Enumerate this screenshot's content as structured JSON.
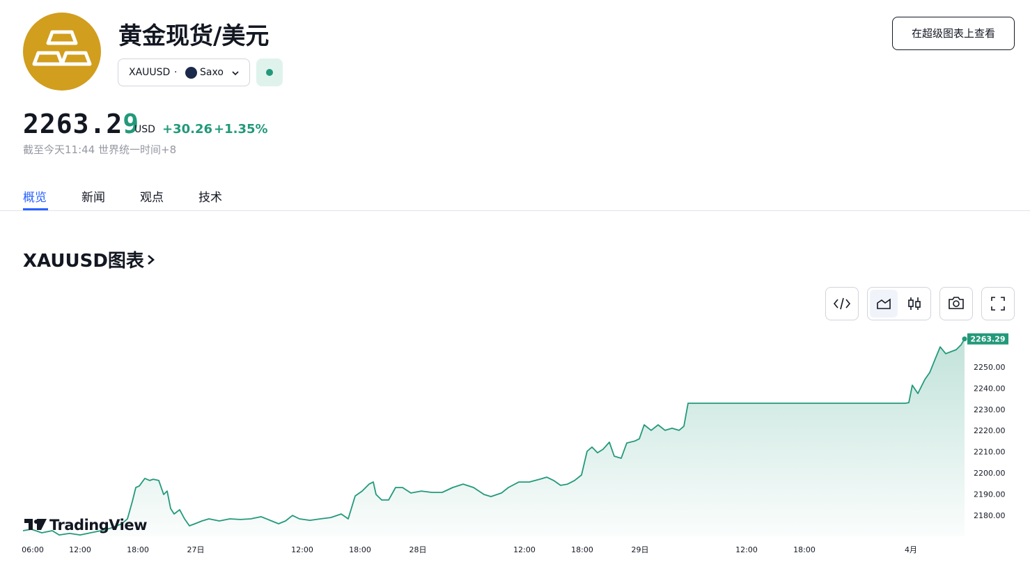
{
  "header": {
    "title": "黄金现货/美元",
    "symbol": "XAUUSD",
    "separator": "·",
    "source": "Saxo",
    "button": "在超级图表上查看"
  },
  "quote": {
    "price_main": "2263.2",
    "price_last_digit": "9",
    "currency": "USD",
    "change": "+30.26",
    "change_pct": "+1.35%",
    "timestamp": "截至今天11:44 世界统一时间+8"
  },
  "tabs": [
    "概览",
    "新闻",
    "观点",
    "技术"
  ],
  "section_title": "XAUUSD图表",
  "watermark": "TradingView",
  "chart_data": {
    "type": "area",
    "color": "#22997a",
    "grid": false,
    "x": [
      0,
      1.2,
      2.7,
      4.2,
      5.2,
      6.7,
      8.2,
      9.7,
      11.2,
      12.7,
      14.2,
      15,
      15.7,
      16.2,
      16.7,
      17.5,
      18.2,
      18.7,
      19.5,
      20.2,
      20.7,
      21.2,
      21.7,
      22.5,
      23.2,
      23.9,
      24.7,
      25.7,
      26.7,
      28.2,
      29.7,
      31.2,
      32.7,
      34.2,
      35.7,
      36.7,
      37.7,
      38.7,
      39.7,
      41.2,
      42.7,
      44.2,
      45.7,
      46.7,
      47.7,
      48.7,
      49.7,
      50.3,
      50.7,
      51.5,
      52.5,
      53.5,
      54.5,
      55.7,
      57.2,
      58.7,
      60.2,
      61.7,
      63.2,
      64.7,
      66.2,
      67.2,
      68.7,
      69.7,
      71.2,
      72.7,
      74.2,
      75.2,
      76.2,
      77.2,
      78.2,
      79.2,
      80.2,
      81,
      81.7,
      82.5,
      83.3,
      84.2,
      84.9,
      85.9,
      86.7,
      87.9,
      88.5,
      89.2,
      90.2,
      91.2,
      92.2,
      93.2,
      94.2,
      94.9,
      95.5,
      126.7,
      127.2,
      127.7,
      128.5,
      129.5,
      130.2,
      131,
      131.7,
      132.5,
      133.2,
      134,
      134.7,
      135.2
    ],
    "values": [
      2172.7,
      2173.4,
      2171.7,
      2172.7,
      2170.7,
      2171.4,
      2170.7,
      2171.7,
      2172.7,
      2174.0,
      2176.0,
      2178.3,
      2186.5,
      2193.1,
      2193.8,
      2197.4,
      2196.4,
      2197.0,
      2196.4,
      2189.8,
      2191.4,
      2183.2,
      2180.6,
      2182.6,
      2178.3,
      2175.0,
      2176.0,
      2177.3,
      2178.3,
      2177.3,
      2178.3,
      2178.0,
      2178.3,
      2179.3,
      2177.3,
      2176.0,
      2177.3,
      2179.9,
      2178.3,
      2177.6,
      2178.3,
      2178.9,
      2180.6,
      2178.3,
      2189.1,
      2191.4,
      2194.7,
      2195.7,
      2189.8,
      2187.2,
      2187.2,
      2193.1,
      2193.1,
      2190.5,
      2191.4,
      2190.8,
      2190.8,
      2193.1,
      2194.7,
      2193.1,
      2189.8,
      2188.8,
      2190.5,
      2193.1,
      2195.7,
      2195.7,
      2197.0,
      2198.0,
      2196.4,
      2194.1,
      2194.7,
      2196.4,
      2199.0,
      2210.2,
      2212.2,
      2209.5,
      2211.2,
      2214.5,
      2207.9,
      2206.9,
      2214.1,
      2215.1,
      2216.1,
      2222.7,
      2220.1,
      2222.7,
      2220.1,
      2221.1,
      2220.1,
      2222.0,
      2232.9,
      2232.9,
      2233.2,
      2241.4,
      2237.5,
      2244.1,
      2247.4,
      2253.9,
      2259.5,
      2256.3,
      2257.2,
      2258.2,
      2260.5,
      2263.29
    ],
    "xlim": [
      0,
      135.2
    ],
    "xticks": [
      {
        "value": 1.4,
        "label": "06:00"
      },
      {
        "value": 8.2,
        "label": "12:00"
      },
      {
        "value": 16.5,
        "label": "18:00"
      },
      {
        "value": 24.8,
        "label": "27日"
      },
      {
        "value": 40.1,
        "label": "12:00"
      },
      {
        "value": 48.4,
        "label": "18:00"
      },
      {
        "value": 56.7,
        "label": "28日"
      },
      {
        "value": 72.0,
        "label": "12:00"
      },
      {
        "value": 80.3,
        "label": "18:00"
      },
      {
        "value": 88.6,
        "label": "29日"
      },
      {
        "value": 103.9,
        "label": "12:00"
      },
      {
        "value": 112.2,
        "label": "18:00"
      },
      {
        "value": 127.5,
        "label": "4月"
      }
    ],
    "ylim": [
      2170,
      2265
    ],
    "yticks": [
      {
        "value": 2180,
        "label": "2180.00"
      },
      {
        "value": 2190,
        "label": "2190.00"
      },
      {
        "value": 2200,
        "label": "2200.00"
      },
      {
        "value": 2210,
        "label": "2210.00"
      },
      {
        "value": 2220,
        "label": "2220.00"
      },
      {
        "value": 2230,
        "label": "2230.00"
      },
      {
        "value": 2240,
        "label": "2240.00"
      },
      {
        "value": 2250,
        "label": "2250.00"
      }
    ]
  }
}
